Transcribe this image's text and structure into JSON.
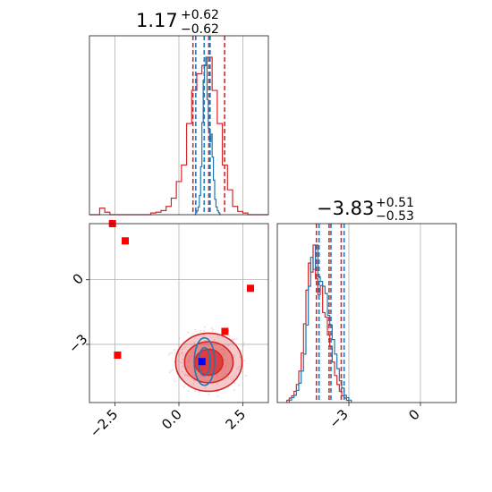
{
  "chart_data": [
    {
      "panel": "top-left-histogram",
      "type": "histogram",
      "title_value": "1.17",
      "title_plus": "+0.62",
      "title_minus": "−0.62",
      "xlim": [
        -3.5,
        3.5
      ],
      "gridlines_x": [
        -2.5,
        0,
        2.5
      ],
      "grid": true,
      "series": [
        {
          "color": "#d62728",
          "bin_start": -3.5,
          "bin_width": 0.2,
          "counts": [
            0,
            0,
            0.8,
            0.3,
            0,
            0,
            0,
            0,
            0,
            0,
            0,
            0,
            0.2,
            0.3,
            0.5,
            1,
            2,
            4,
            6,
            11,
            15,
            17,
            18,
            19,
            15,
            11,
            6,
            3,
            1,
            0.4,
            0.2,
            0,
            0,
            0,
            0
          ],
          "quantile_lines": [
            0.55,
            1.17,
            1.79
          ]
        },
        {
          "color": "#1f77b4",
          "bin_start": 0.6,
          "bin_width": 0.05,
          "counts": [
            0,
            1,
            2,
            4,
            10,
            25,
            48,
            70,
            78,
            82,
            60,
            45,
            38,
            42,
            30,
            18,
            8,
            4,
            2,
            1,
            0
          ],
          "quantile_lines": [
            0.66,
            0.99,
            1.22
          ]
        }
      ]
    },
    {
      "panel": "bottom-right-histogram",
      "type": "histogram",
      "title_value": "−3.83",
      "title_plus": "+0.51",
      "title_minus": "−0.53",
      "xlim": [
        -6.0,
        1.5
      ],
      "ticks_x": [
        -3,
        0
      ],
      "tick_labels_x": [
        "−3",
        "0"
      ],
      "grid": true,
      "series": [
        {
          "color": "#d62728",
          "bin_start": -5.6,
          "bin_width": 0.1,
          "counts": [
            1,
            2,
            3,
            5,
            8,
            14,
            22,
            35,
            50,
            62,
            58,
            70,
            55,
            48,
            52,
            40,
            38,
            30,
            25,
            18,
            12,
            8,
            5,
            3,
            2,
            1
          ],
          "quantile_lines": [
            -4.36,
            -3.83,
            -3.32
          ]
        },
        {
          "color": "#1f77b4",
          "bin_start": -5.5,
          "bin_width": 0.1,
          "counts": [
            1,
            2,
            3,
            5,
            8,
            13,
            20,
            32,
            48,
            60,
            55,
            65,
            52,
            50,
            48,
            45,
            36,
            32,
            26,
            20,
            14,
            9,
            6,
            3,
            2,
            1
          ],
          "quantile_lines": [
            -4.25,
            -3.75,
            -3.2
          ]
        }
      ]
    },
    {
      "panel": "bottom-left-2d",
      "type": "scatter",
      "xlim": [
        -3.5,
        3.5
      ],
      "ylim": [
        -5.7,
        2.6
      ],
      "ticks_x": [
        -2.5,
        0,
        2.5
      ],
      "tick_labels_x": [
        "−2.5",
        "0.0",
        "2.5"
      ],
      "ticks_y": [
        -3,
        0
      ],
      "tick_labels_y": [
        "−3",
        "0"
      ],
      "grid": true,
      "red_points": [
        {
          "x": -2.6,
          "y": 2.6
        },
        {
          "x": -2.1,
          "y": 1.8
        },
        {
          "x": 2.8,
          "y": -0.4
        },
        {
          "x": 1.8,
          "y": -2.4
        },
        {
          "x": -2.4,
          "y": -3.5
        }
      ],
      "blue_point": {
        "x": 0.9,
        "y": -3.8
      },
      "contours": [
        {
          "color": "#d62728",
          "center": [
            1.17,
            -3.83
          ],
          "rx": 1.3,
          "ry": 1.35,
          "fill_opacity": 0.25
        },
        {
          "color": "#d62728",
          "center": [
            1.17,
            -3.83
          ],
          "rx": 0.95,
          "ry": 0.95,
          "fill_opacity": 0.4
        },
        {
          "color": "#d62728",
          "center": [
            1.17,
            -3.83
          ],
          "rx": 0.55,
          "ry": 0.6,
          "fill_opacity": 0.75
        },
        {
          "color": "#1f77b4",
          "center": [
            1.0,
            -3.8
          ],
          "rx": 0.4,
          "ry": 1.1,
          "fill_opacity": 0
        },
        {
          "color": "#1f77b4",
          "center": [
            1.0,
            -3.8
          ],
          "rx": 0.22,
          "ry": 0.65,
          "fill_opacity": 0
        }
      ]
    }
  ]
}
